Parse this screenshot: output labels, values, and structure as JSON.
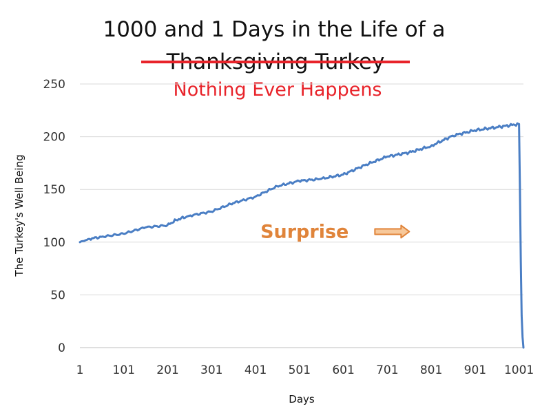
{
  "chart_data": {
    "type": "line",
    "title": "1000 and 1 Days in the Life of a",
    "title_struck": "Thanksgiving Turkey",
    "subtitle": "Nothing Ever Happens",
    "xlabel": "Days",
    "ylabel": "The Turkey's Well Being",
    "xlim": [
      1,
      1011
    ],
    "ylim": [
      0,
      250
    ],
    "grid": true,
    "x_ticks": [
      1,
      101,
      201,
      301,
      401,
      501,
      601,
      701,
      801,
      901,
      1001
    ],
    "y_ticks": [
      0,
      50,
      100,
      150,
      200,
      250
    ],
    "series": [
      {
        "x": [
          1,
          20,
          50,
          100,
          150,
          200,
          220,
          250,
          300,
          350,
          400,
          450,
          500,
          550,
          600,
          650,
          700,
          750,
          800,
          850,
          900,
          950,
          1000,
          1001,
          1003,
          1005,
          1007,
          1009,
          1011
        ],
        "values": [
          100,
          103,
          105,
          108,
          114,
          116,
          121,
          125,
          129,
          137,
          143,
          153,
          158,
          160,
          164,
          173,
          181,
          185,
          191,
          201,
          206,
          209,
          212,
          212,
          150,
          80,
          30,
          10,
          0
        ],
        "color": "#4a7ec4"
      }
    ],
    "annotations": [
      {
        "text": "Surprise",
        "x": 770,
        "y": 110,
        "color": "#e0843a",
        "arrow": "right"
      }
    ],
    "colors": {
      "title": "#111111",
      "strikethrough": "#e8232a",
      "subtitle": "#e8232a",
      "line": "#4a7ec4",
      "grid": "#d9d9d9",
      "annotation": "#e0843a"
    }
  }
}
